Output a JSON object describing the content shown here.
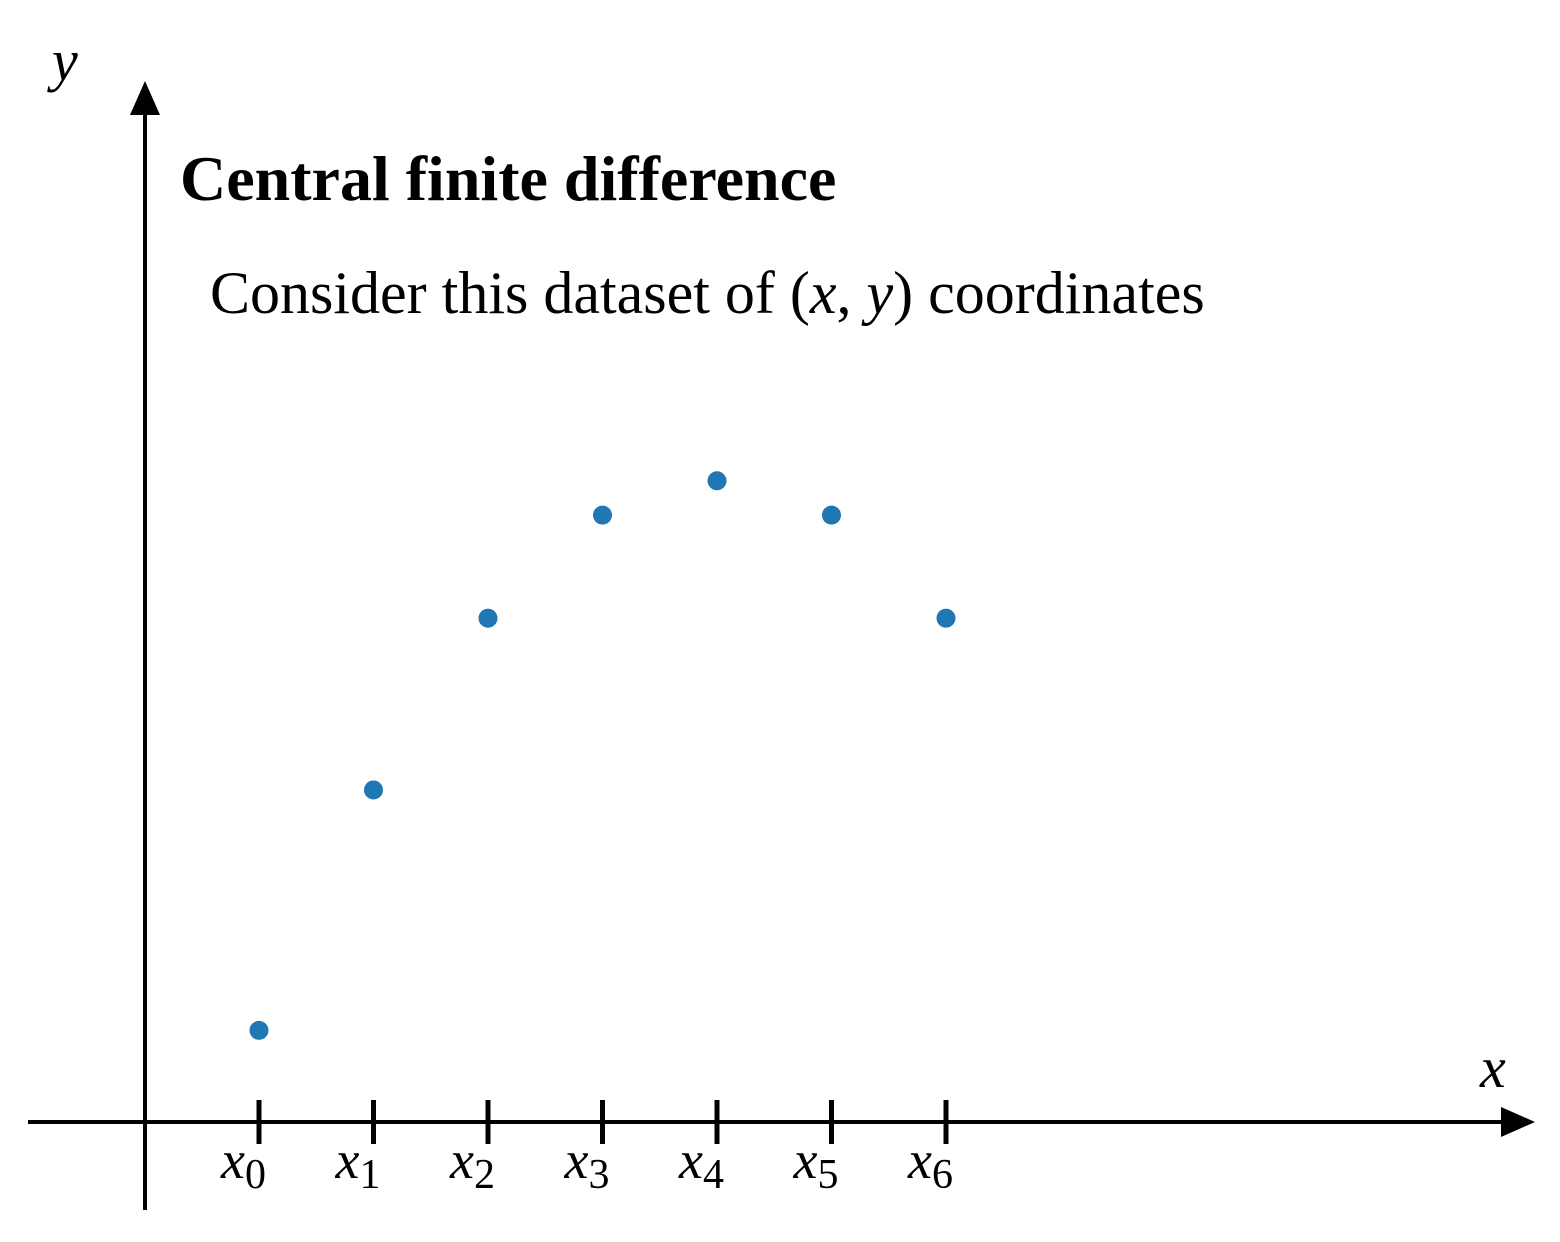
{
  "chart_data": {
    "type": "scatter",
    "title": "Central finite difference",
    "subtitle": {
      "before": "Consider this dataset of (",
      "var_x": "x",
      "comma": ", ",
      "var_y": "y",
      "after": ") coordinates"
    },
    "xlabel": "x",
    "ylabel": "y",
    "tick_labels": [
      {
        "var": "x",
        "sub": "0"
      },
      {
        "var": "x",
        "sub": "1"
      },
      {
        "var": "x",
        "sub": "2"
      },
      {
        "var": "x",
        "sub": "3"
      },
      {
        "var": "x",
        "sub": "4"
      },
      {
        "var": "x",
        "sub": "5"
      },
      {
        "var": "x",
        "sub": "6"
      }
    ],
    "x": [
      0,
      1,
      2,
      3,
      4,
      5,
      6
    ],
    "y": [
      0.8,
      2.9,
      4.4,
      5.3,
      5.6,
      5.3,
      4.4
    ],
    "xlim": [
      -1,
      10.2
    ],
    "ylim": [
      -0.75,
      9.1
    ],
    "grid": false,
    "point_color": "#1f77b4",
    "axis_color": "#000000"
  }
}
